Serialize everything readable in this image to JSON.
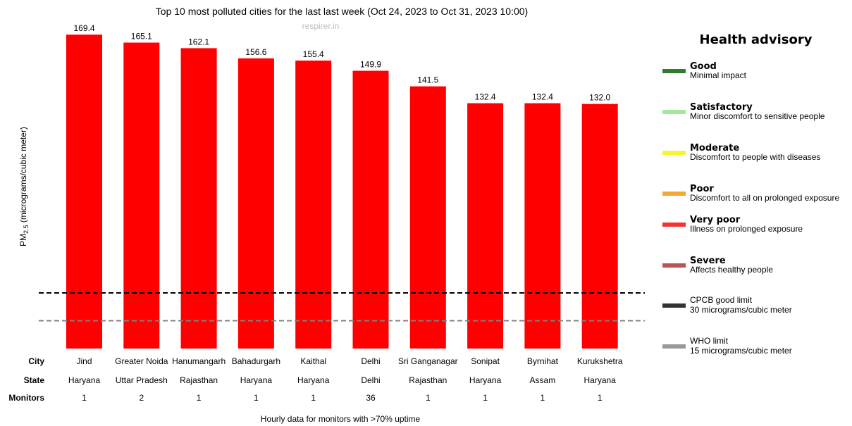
{
  "chart_data": {
    "type": "bar",
    "title": "Top 10 most polluted cities for the last last week (Oct 24, 2023 to Oct 31, 2023 10:00)",
    "watermark": "respirer.in",
    "ylabel_prefix": "PM",
    "ylabel_sub": "2.5",
    "ylabel_suffix": " (micrograms/cubic meter)",
    "categories": [
      "Jind",
      "Greater Noida",
      "Hanumangarh",
      "Bahadurgarh",
      "Kaithal",
      "Delhi",
      "Sri Ganganagar",
      "Sonipat",
      "Byrnihat",
      "Kurukshetra"
    ],
    "values": [
      169.4,
      165.1,
      162.1,
      156.6,
      155.4,
      149.9,
      141.5,
      132.4,
      132.4,
      132.0
    ],
    "value_labels": [
      "169.4",
      "165.1",
      "162.1",
      "156.6",
      "155.4",
      "149.9",
      "141.5",
      "132.4",
      "132.4",
      "132.0"
    ],
    "states": [
      "Haryana",
      "Uttar Pradesh",
      "Rajasthan",
      "Haryana",
      "Haryana",
      "Delhi",
      "Rajasthan",
      "Haryana",
      "Assam",
      "Haryana"
    ],
    "monitors": [
      "1",
      "2",
      "1",
      "1",
      "1",
      "36",
      "1",
      "1",
      "1",
      "1"
    ],
    "row_labels": {
      "city": "City",
      "state": "State",
      "monitors": "Monitors"
    },
    "bar_color": "#ff0000",
    "reference_lines": [
      {
        "value": 30,
        "color": "#000000",
        "style": "dashed"
      },
      {
        "value": 15,
        "color": "#808080",
        "style": "dashed"
      }
    ],
    "ylim": [
      0,
      175
    ],
    "footnote": "Hourly data for monitors with >70% uptime"
  },
  "legend": {
    "heading": "Health advisory",
    "items": [
      {
        "title": "Good",
        "desc": "Minimal impact",
        "color": "#2e7d32",
        "name": "good"
      },
      {
        "title": "Satisfactory",
        "desc": "Minor discomfort to sensitive people",
        "color": "#9ee89a",
        "name": "satisfactory"
      },
      {
        "title": "Moderate",
        "desc": "Discomfort to people with diseases",
        "color": "#f5f531",
        "name": "moderate"
      },
      {
        "title": "Poor",
        "desc": "Discomfort to all on prolonged exposure",
        "color": "#f5a833",
        "name": "poor"
      },
      {
        "title": "Very poor",
        "desc": "Illness on prolonged exposure",
        "color": "#ee3434",
        "name": "very-poor"
      },
      {
        "title": "Severe",
        "desc": "Affects healthy people",
        "color": "#b85450",
        "name": "severe"
      },
      {
        "title": "",
        "desc": "CPCB good limit",
        "desc2": "30 micrograms/cubic meter",
        "color": "#333333",
        "name": "cpcb-limit"
      },
      {
        "title": "",
        "desc": "WHO limit",
        "desc2": "15 micrograms/cubic meter",
        "color": "#999999",
        "name": "who-limit"
      }
    ]
  }
}
